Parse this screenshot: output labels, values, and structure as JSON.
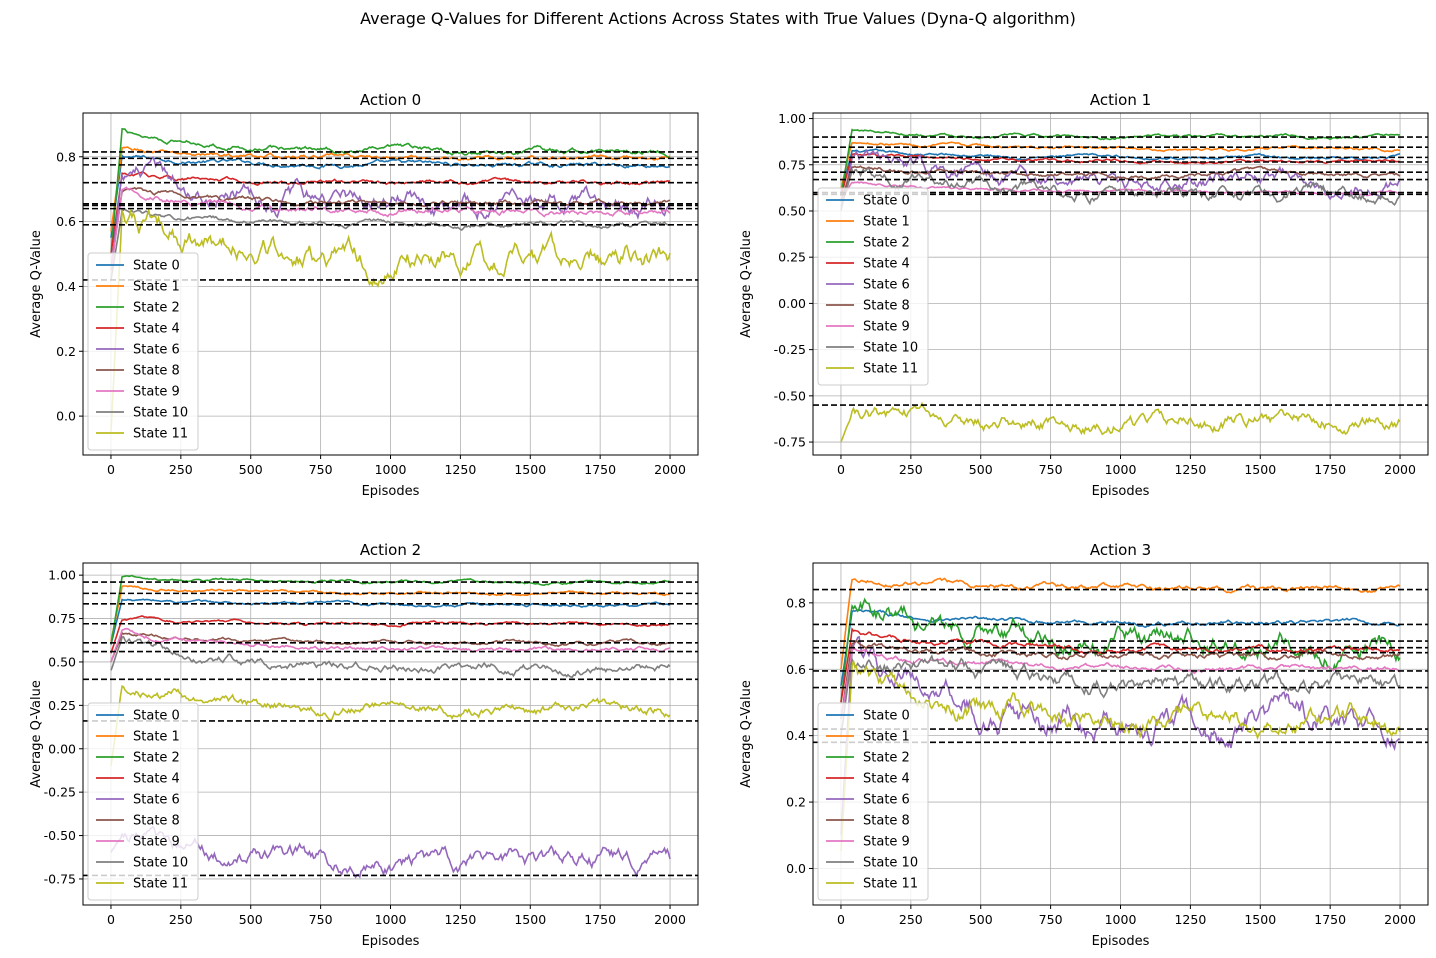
{
  "figure_title": "Average Q-Values for Different Actions Across States with True Values (Dyna-Q algorithm)",
  "colors": {
    "State 0": "#1f77b4",
    "State 1": "#ff7f0e",
    "State 2": "#2ca02c",
    "State 4": "#d62728",
    "State 6": "#9467bd",
    "State 8": "#8c564b",
    "State 9": "#e377c2",
    "State 10": "#7f7f7f",
    "State 11": "#bcbd22"
  },
  "chart_data": [
    {
      "type": "line",
      "title": "Action 0",
      "xlabel": "Episodes",
      "ylabel": "Average Q-Value",
      "xlim": [
        -100,
        2100
      ],
      "ylim": [
        -0.12,
        0.935
      ],
      "xticks": [
        0,
        250,
        500,
        750,
        1000,
        1250,
        1500,
        1750,
        2000
      ],
      "yticks": [
        0.0,
        0.2,
        0.4,
        0.6,
        0.8
      ],
      "yticklabels": [
        "0.0",
        "0.2",
        "0.4",
        "0.6",
        "0.8"
      ],
      "grid": true,
      "legend": "lower-left",
      "series": [
        {
          "name": "State 0",
          "start": 0.55,
          "peak": 0.8,
          "end": 0.775,
          "noise": 0.008
        },
        {
          "name": "State 1",
          "start": 0.57,
          "peak": 0.82,
          "end": 0.795,
          "noise": 0.008
        },
        {
          "name": "State 2",
          "start": 0.5,
          "peak": 0.88,
          "end": 0.815,
          "noise": 0.01
        },
        {
          "name": "State 4",
          "start": 0.5,
          "peak": 0.745,
          "end": 0.72,
          "noise": 0.008
        },
        {
          "name": "State 6",
          "start": 0.45,
          "peak": 0.76,
          "end": 0.66,
          "noise": 0.035
        },
        {
          "name": "State 8",
          "start": 0.45,
          "peak": 0.7,
          "end": 0.655,
          "noise": 0.01
        },
        {
          "name": "State 9",
          "start": 0.45,
          "peak": 0.69,
          "end": 0.635,
          "noise": 0.012
        },
        {
          "name": "State 10",
          "start": 0.42,
          "peak": 0.63,
          "end": 0.59,
          "noise": 0.01
        },
        {
          "name": "State 11",
          "start": -0.05,
          "peak": 0.62,
          "end": 0.48,
          "noise": 0.045
        }
      ],
      "true_values": [
        0.815,
        0.795,
        0.775,
        0.72,
        0.655,
        0.65,
        0.64,
        0.59,
        0.42
      ]
    },
    {
      "type": "line",
      "title": "Action 1",
      "xlabel": "Episodes",
      "ylabel": "Average Q-Value",
      "xlim": [
        -100,
        2100
      ],
      "ylim": [
        -0.82,
        1.03
      ],
      "xticks": [
        0,
        250,
        500,
        750,
        1000,
        1250,
        1500,
        1750,
        2000
      ],
      "yticks": [
        -0.75,
        -0.5,
        -0.25,
        0.0,
        0.25,
        0.5,
        0.75,
        1.0
      ],
      "yticklabels": [
        "-0.75",
        "-0.50",
        "-0.25",
        "0.00",
        "0.25",
        "0.50",
        "0.75",
        "1.00"
      ],
      "grid": true,
      "legend": "upper-left",
      "series": [
        {
          "name": "State 0",
          "start": 0.6,
          "peak": 0.82,
          "end": 0.79,
          "noise": 0.01
        },
        {
          "name": "State 1",
          "start": 0.62,
          "peak": 0.88,
          "end": 0.835,
          "noise": 0.01
        },
        {
          "name": "State 2",
          "start": 0.58,
          "peak": 0.94,
          "end": 0.9,
          "noise": 0.01
        },
        {
          "name": "State 4",
          "start": 0.58,
          "peak": 0.8,
          "end": 0.77,
          "noise": 0.01
        },
        {
          "name": "State 6",
          "start": 0.5,
          "peak": 0.78,
          "end": 0.65,
          "noise": 0.05
        },
        {
          "name": "State 8",
          "start": 0.55,
          "peak": 0.74,
          "end": 0.7,
          "noise": 0.015
        },
        {
          "name": "State 9",
          "start": 0.55,
          "peak": 0.66,
          "end": 0.6,
          "noise": 0.01
        },
        {
          "name": "State 10",
          "start": 0.52,
          "peak": 0.72,
          "end": 0.6,
          "noise": 0.04
        },
        {
          "name": "State 11",
          "start": -0.75,
          "peak": -0.6,
          "end": -0.62,
          "noise": 0.05
        }
      ],
      "true_values": [
        0.9,
        0.845,
        0.79,
        0.765,
        0.71,
        0.67,
        0.6,
        0.59,
        -0.55
      ]
    },
    {
      "type": "line",
      "title": "Action 2",
      "xlabel": "Episodes",
      "ylabel": "Average Q-Value",
      "xlim": [
        -100,
        2100
      ],
      "ylim": [
        -0.9,
        1.07
      ],
      "xticks": [
        0,
        250,
        500,
        750,
        1000,
        1250,
        1500,
        1750,
        2000
      ],
      "yticks": [
        -0.75,
        -0.5,
        -0.25,
        0.0,
        0.25,
        0.5,
        0.75,
        1.0
      ],
      "yticklabels": [
        "-0.75",
        "-0.50",
        "-0.25",
        "0.00",
        "0.25",
        "0.50",
        "0.75",
        "1.00"
      ],
      "grid": true,
      "legend": "lower-left",
      "series": [
        {
          "name": "State 0",
          "start": 0.6,
          "peak": 0.86,
          "end": 0.83,
          "noise": 0.01
        },
        {
          "name": "State 1",
          "start": 0.62,
          "peak": 0.93,
          "end": 0.895,
          "noise": 0.01
        },
        {
          "name": "State 2",
          "start": 0.6,
          "peak": 0.99,
          "end": 0.96,
          "noise": 0.01
        },
        {
          "name": "State 4",
          "start": 0.55,
          "peak": 0.75,
          "end": 0.72,
          "noise": 0.01
        },
        {
          "name": "State 6",
          "start": -0.6,
          "peak": -0.5,
          "end": -0.66,
          "noise": 0.06
        },
        {
          "name": "State 8",
          "start": 0.5,
          "peak": 0.66,
          "end": 0.61,
          "noise": 0.012
        },
        {
          "name": "State 9",
          "start": 0.5,
          "peak": 0.68,
          "end": 0.57,
          "noise": 0.015
        },
        {
          "name": "State 10",
          "start": 0.45,
          "peak": 0.63,
          "end": 0.46,
          "noise": 0.03
        },
        {
          "name": "State 11",
          "start": -0.1,
          "peak": 0.37,
          "end": 0.22,
          "noise": 0.04
        }
      ],
      "true_values": [
        0.96,
        0.895,
        0.835,
        0.72,
        0.61,
        0.56,
        0.4,
        0.16,
        -0.73
      ]
    },
    {
      "type": "line",
      "title": "Action 3",
      "xlabel": "Episodes",
      "ylabel": "Average Q-Value",
      "xlim": [
        -100,
        2100
      ],
      "ylim": [
        -0.11,
        0.92
      ],
      "xticks": [
        0,
        250,
        500,
        750,
        1000,
        1250,
        1500,
        1750,
        2000
      ],
      "yticks": [
        0.0,
        0.2,
        0.4,
        0.6,
        0.8
      ],
      "yticklabels": [
        "0.0",
        "0.2",
        "0.4",
        "0.6",
        "0.8"
      ],
      "grid": true,
      "legend": "lower-left",
      "series": [
        {
          "name": "State 0",
          "start": 0.55,
          "peak": 0.77,
          "end": 0.74,
          "noise": 0.008
        },
        {
          "name": "State 1",
          "start": 0.6,
          "peak": 0.88,
          "end": 0.84,
          "noise": 0.01
        },
        {
          "name": "State 2",
          "start": 0.5,
          "peak": 0.81,
          "end": 0.68,
          "noise": 0.04
        },
        {
          "name": "State 4",
          "start": 0.5,
          "peak": 0.71,
          "end": 0.66,
          "noise": 0.01
        },
        {
          "name": "State 6",
          "start": 0.1,
          "peak": 0.65,
          "end": 0.43,
          "noise": 0.05
        },
        {
          "name": "State 8",
          "start": 0.45,
          "peak": 0.68,
          "end": 0.64,
          "noise": 0.012
        },
        {
          "name": "State 9",
          "start": 0.45,
          "peak": 0.65,
          "end": 0.6,
          "noise": 0.01
        },
        {
          "name": "State 10",
          "start": 0.4,
          "peak": 0.65,
          "end": 0.55,
          "noise": 0.03
        },
        {
          "name": "State 11",
          "start": 0.05,
          "peak": 0.6,
          "end": 0.44,
          "noise": 0.04
        }
      ],
      "true_values": [
        0.84,
        0.735,
        0.685,
        0.665,
        0.65,
        0.595,
        0.545,
        0.42,
        0.38
      ]
    }
  ]
}
